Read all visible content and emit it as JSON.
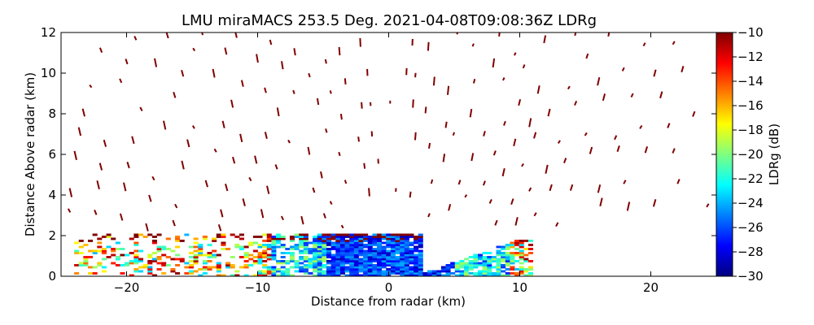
{
  "chart_data": {
    "type": "heatmap",
    "title": "LMU miraMACS 253.5 Deg. 2021-04-08T09:08:36Z  LDRg",
    "xlabel": "Distance from radar (km)",
    "ylabel": "Distance Above radar  (km)",
    "xlim": [
      -25,
      25
    ],
    "ylim": [
      0,
      12
    ],
    "xticks": [
      -20,
      -10,
      0,
      10,
      20
    ],
    "yticks": [
      0,
      2,
      4,
      6,
      8,
      10,
      12
    ],
    "colorbar": {
      "label": "LDRg (dB)",
      "range": [
        -30,
        -10
      ],
      "ticks": [
        -10,
        -12,
        -14,
        -16,
        -18,
        -20,
        -22,
        -24,
        -26,
        -28,
        -30
      ],
      "colormap": "jet",
      "stops": [
        "#00007f",
        "#0000ff",
        "#007fff",
        "#00ffff",
        "#7fff7f",
        "#ffff00",
        "#ff7f00",
        "#ff0000",
        "#7f0000"
      ]
    },
    "field": {
      "description": "PPI-style RHI scan of linear depolarization ratio",
      "dense_layer": {
        "x_range_km": [
          -24,
          11
        ],
        "top_km": 2.1,
        "center_value_db": -29,
        "edge_value_db": -21
      },
      "sparse_echoes_value_db": -10
    }
  }
}
